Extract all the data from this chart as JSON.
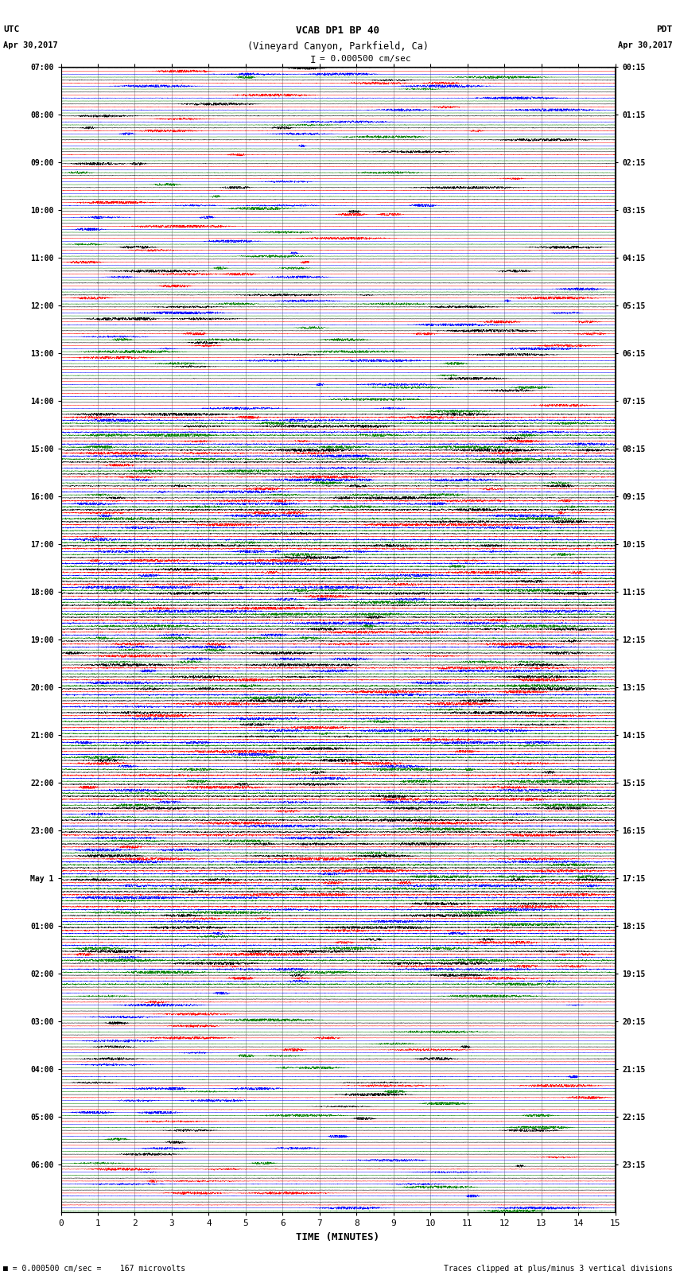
{
  "title_line1": "VCAB DP1 BP 40",
  "title_line2": "(Vineyard Canyon, Parkfield, Ca)",
  "scale_text": "I = 0.000500 cm/sec",
  "left_label_top": "UTC",
  "left_label_date": "Apr 30,2017",
  "right_label_top": "PDT",
  "right_label_date": "Apr 30,2017",
  "xlabel": "TIME (MINUTES)",
  "footer_left": "= 0.000500 cm/sec =    167 microvolts",
  "footer_right": "Traces clipped at plus/minus 3 vertical divisions",
  "utc_times": [
    "07:00",
    "",
    "",
    "",
    "08:00",
    "",
    "",
    "",
    "09:00",
    "",
    "",
    "",
    "10:00",
    "",
    "",
    "",
    "11:00",
    "",
    "",
    "",
    "12:00",
    "",
    "",
    "",
    "13:00",
    "",
    "",
    "",
    "14:00",
    "",
    "",
    "",
    "15:00",
    "",
    "",
    "",
    "16:00",
    "",
    "",
    "",
    "17:00",
    "",
    "",
    "",
    "18:00",
    "",
    "",
    "",
    "19:00",
    "",
    "",
    "",
    "20:00",
    "",
    "",
    "",
    "21:00",
    "",
    "",
    "",
    "22:00",
    "",
    "",
    "",
    "23:00",
    "",
    "",
    "",
    "May 1",
    "",
    "",
    "",
    "01:00",
    "",
    "",
    "",
    "02:00",
    "",
    "",
    "",
    "03:00",
    "",
    "",
    "",
    "04:00",
    "",
    "",
    "",
    "05:00",
    "",
    "",
    "",
    "06:00",
    "",
    "",
    "",
    ""
  ],
  "pdt_times": [
    "00:15",
    "",
    "",
    "",
    "01:15",
    "",
    "",
    "",
    "02:15",
    "",
    "",
    "",
    "03:15",
    "",
    "",
    "",
    "04:15",
    "",
    "",
    "",
    "05:15",
    "",
    "",
    "",
    "06:15",
    "",
    "",
    "",
    "07:15",
    "",
    "",
    "",
    "08:15",
    "",
    "",
    "",
    "09:15",
    "",
    "",
    "",
    "10:15",
    "",
    "",
    "",
    "11:15",
    "",
    "",
    "",
    "12:15",
    "",
    "",
    "",
    "13:15",
    "",
    "",
    "",
    "14:15",
    "",
    "",
    "",
    "15:15",
    "",
    "",
    "",
    "16:15",
    "",
    "",
    "",
    "17:15",
    "",
    "",
    "",
    "18:15",
    "",
    "",
    "",
    "19:15",
    "",
    "",
    "",
    "20:15",
    "",
    "",
    "",
    "21:15",
    "",
    "",
    "",
    "22:15",
    "",
    "",
    "",
    "23:15",
    "",
    "",
    "",
    ""
  ],
  "colors": [
    "black",
    "red",
    "blue",
    "green"
  ],
  "num_rows": 96,
  "background_color": "white",
  "xlim": [
    0,
    15
  ],
  "xticks": [
    0,
    1,
    2,
    3,
    4,
    5,
    6,
    7,
    8,
    9,
    10,
    11,
    12,
    13,
    14,
    15
  ]
}
